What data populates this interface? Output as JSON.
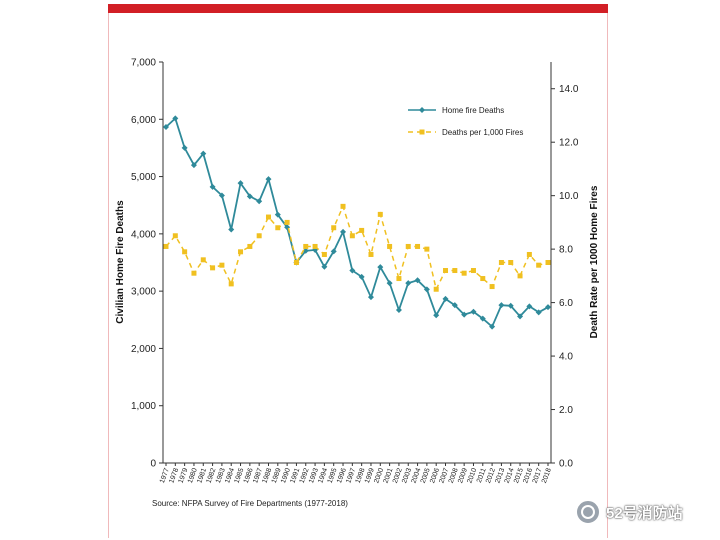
{
  "chart_data": {
    "type": "line",
    "x": [
      1977,
      1978,
      1979,
      1980,
      1981,
      1982,
      1983,
      1984,
      1985,
      1986,
      1987,
      1988,
      1989,
      1990,
      1991,
      1992,
      1993,
      1994,
      1995,
      1996,
      1997,
      1998,
      1999,
      2000,
      2001,
      2002,
      2003,
      2004,
      2005,
      2006,
      2007,
      2008,
      2009,
      2010,
      2011,
      2012,
      2013,
      2014,
      2015,
      2016,
      2017,
      2018
    ],
    "series": [
      {
        "name": "Home fire Deaths",
        "axis": "left",
        "color": "#2f8a9a",
        "values": [
          5865,
          6015,
          5500,
          5200,
          5400,
          4820,
          4670,
          4075,
          4885,
          4655,
          4570,
          4955,
          4335,
          4115,
          3500,
          3705,
          3720,
          3425,
          3695,
          4035,
          3360,
          3250,
          2895,
          3420,
          3140,
          2670,
          3140,
          3190,
          3030,
          2580,
          2865,
          2755,
          2590,
          2640,
          2520,
          2380,
          2755,
          2745,
          2560,
          2735,
          2630,
          2720
        ]
      },
      {
        "name": "Deaths per 1,000 Fires",
        "axis": "right",
        "color": "#f0c020",
        "values": [
          8.1,
          8.5,
          7.9,
          7.1,
          7.6,
          7.3,
          7.4,
          6.7,
          7.9,
          8.1,
          8.5,
          9.2,
          8.8,
          9.0,
          7.5,
          8.1,
          8.1,
          7.8,
          8.8,
          9.6,
          8.5,
          8.7,
          7.8,
          9.3,
          8.1,
          6.9,
          8.1,
          8.1,
          8.0,
          6.5,
          7.2,
          7.2,
          7.1,
          7.2,
          6.9,
          6.6,
          7.5,
          7.5,
          7.0,
          7.8,
          7.4,
          7.5
        ]
      }
    ],
    "ylabel": "Civilian Home Fire Deaths",
    "ylabel_right": "Death Rate per 1000 Home Fires",
    "ylim": [
      0,
      7000
    ],
    "ylim_right": [
      0,
      15
    ],
    "yticks": [
      "0",
      "1,000",
      "2,000",
      "3,000",
      "4,000",
      "5,000",
      "6,000",
      "7,000"
    ],
    "yticks_right": [
      "0.0",
      "2.0",
      "4.0",
      "6.0",
      "8.0",
      "10.0",
      "12.0",
      "14.0"
    ],
    "legend_position": "top-right",
    "grid": false
  },
  "source_text": "Source:  NFPA Survey of Fire Departments (1977-2018)",
  "watermark_text": "52号消防站",
  "watermark_icon": "wechat-channel-icon"
}
